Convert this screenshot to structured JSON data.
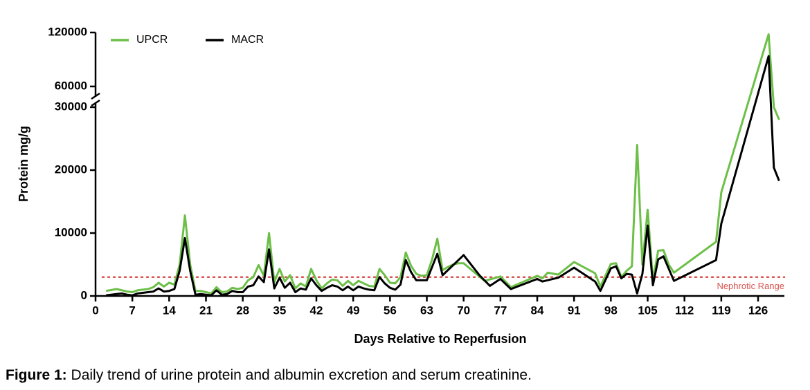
{
  "chart_data": {
    "type": "line",
    "x_label": "Days Relative to Reperfusion",
    "y_label": "Protein mg/g",
    "xlim": [
      0,
      131
    ],
    "xticks": [
      0,
      7,
      14,
      21,
      28,
      35,
      42,
      49,
      56,
      63,
      70,
      77,
      84,
      91,
      98,
      105,
      112,
      119,
      126
    ],
    "ylim": [
      0,
      120000
    ],
    "y_break": [
      30000,
      60000
    ],
    "yticks": [
      0,
      10000,
      20000,
      30000,
      60000,
      120000
    ],
    "legend": "top-left",
    "reference_line": {
      "value": 3000,
      "label": "Nephrotic Range",
      "color": "#d9534f"
    },
    "series": [
      {
        "name": "UPCR",
        "color": "#6cbf47",
        "x": [
          2,
          4,
          6,
          7,
          8,
          10,
          11,
          12,
          13,
          14,
          15,
          16,
          17,
          18,
          19,
          20,
          21,
          22,
          23,
          24,
          25,
          26,
          27,
          28,
          29,
          30,
          31,
          32,
          33,
          34,
          35,
          36,
          37,
          38,
          39,
          40,
          41,
          42,
          43,
          44,
          45,
          46,
          47,
          48,
          49,
          50,
          51,
          52,
          53,
          54,
          55,
          56,
          57,
          58,
          59,
          60,
          61,
          62,
          63,
          64,
          65,
          66,
          67,
          68,
          69,
          70,
          71,
          74,
          77,
          79,
          84,
          85,
          86,
          88,
          91,
          95,
          96,
          98,
          99,
          100,
          101,
          102,
          103,
          104,
          105,
          106,
          107,
          108,
          109,
          110,
          118,
          119,
          128,
          129,
          130
        ],
        "values": [
          800,
          1100,
          700,
          600,
          900,
          1100,
          1400,
          2100,
          1500,
          2100,
          1800,
          5000,
          12800,
          5000,
          800,
          800,
          600,
          400,
          1400,
          600,
          700,
          1300,
          1100,
          1300,
          2500,
          3000,
          4900,
          3200,
          10000,
          2200,
          4300,
          2300,
          3300,
          1200,
          2000,
          1500,
          4300,
          2500,
          1200,
          2000,
          2600,
          2500,
          1600,
          2400,
          1700,
          2400,
          2000,
          1600,
          1500,
          4300,
          3300,
          2100,
          2000,
          3000,
          6900,
          4800,
          3500,
          3200,
          3300,
          5800,
          9100,
          4100,
          4600,
          5000,
          5200,
          5200,
          4500,
          2400,
          3100,
          1400,
          3200,
          2800,
          3700,
          3400,
          5400,
          3600,
          1500,
          5100,
          5200,
          3000,
          4000,
          4700,
          24000,
          5000,
          13700,
          2500,
          7200,
          7300,
          5000,
          3700,
          8600,
          16500,
          118000,
          30000,
          28000
        ]
      },
      {
        "name": "MACR",
        "color": "#000000",
        "x": [
          2,
          4,
          5,
          6,
          7,
          8,
          10,
          11,
          12,
          13,
          14,
          15,
          16,
          17,
          18,
          19,
          20,
          21,
          22,
          23,
          24,
          25,
          26,
          27,
          28,
          29,
          30,
          31,
          32,
          33,
          34,
          35,
          36,
          37,
          38,
          39,
          40,
          41,
          42,
          43,
          44,
          45,
          46,
          47,
          48,
          49,
          50,
          51,
          52,
          53,
          54,
          55,
          56,
          57,
          58,
          59,
          60,
          61,
          63,
          65,
          66,
          70,
          73,
          75,
          77,
          79,
          84,
          85,
          88,
          91,
          95,
          96,
          98,
          99,
          100,
          101,
          102,
          103,
          104,
          105,
          106,
          107,
          108,
          110,
          118,
          119,
          128,
          129,
          130
        ],
        "values": [
          100,
          300,
          400,
          200,
          100,
          400,
          600,
          700,
          1200,
          700,
          800,
          1100,
          4000,
          9200,
          4000,
          200,
          300,
          200,
          100,
          900,
          200,
          300,
          800,
          600,
          600,
          1500,
          1700,
          3100,
          2200,
          7400,
          1200,
          2900,
          1300,
          2100,
          600,
          1200,
          1000,
          2800,
          1700,
          800,
          1300,
          1700,
          1500,
          900,
          1500,
          900,
          1500,
          1200,
          1000,
          900,
          3000,
          2000,
          1300,
          1000,
          1800,
          5700,
          3800,
          2500,
          2500,
          6700,
          3300,
          6500,
          3300,
          1600,
          2700,
          1100,
          2700,
          2300,
          2900,
          4500,
          2300,
          800,
          4400,
          4700,
          2800,
          3500,
          3400,
          400,
          3500,
          11200,
          1700,
          5800,
          6300,
          2400,
          5700,
          11500,
          93800,
          20400,
          18300
        ]
      }
    ]
  },
  "caption": {
    "label": "Figure 1:",
    "text": "Daily trend of urine protein and albumin excretion and serum creatinine."
  }
}
